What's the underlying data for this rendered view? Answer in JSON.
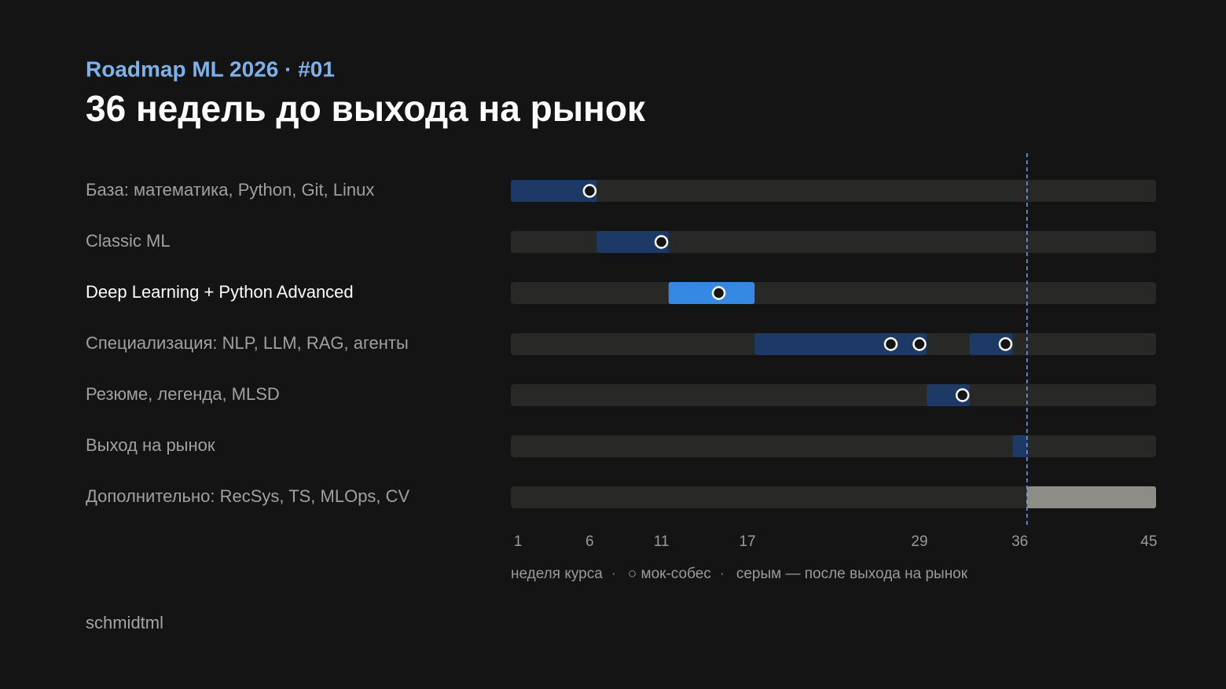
{
  "chart_data": {
    "type": "gantt",
    "subtitle": "Roadmap ML 2026 · #01",
    "title": "36 недель до выхода на рынок",
    "tasks": [
      {
        "name": "База: математика, Python, Git, Linux",
        "color": "#1d3a66",
        "segments": [
          {
            "start": 1,
            "end": 6
          }
        ],
        "mocks": [
          6
        ]
      },
      {
        "name": "Classic ML",
        "color": "#1d3a66",
        "segments": [
          {
            "start": 7,
            "end": 11
          }
        ],
        "mocks": [
          11
        ]
      },
      {
        "name": "Deep Learning + Python Advanced",
        "color": "#3589e3",
        "highlight": true,
        "segments": [
          {
            "start": 12,
            "end": 17
          }
        ],
        "mocks": [
          15
        ]
      },
      {
        "name": "Специализация: NLP, LLM, RAG, агенты",
        "color": "#1d3a66",
        "segments": [
          {
            "start": 18,
            "end": 29
          },
          {
            "start": 33,
            "end": 35
          }
        ],
        "mocks": [
          27,
          29,
          35
        ]
      },
      {
        "name": "Резюме, легенда, MLSD",
        "color": "#1d3a66",
        "segments": [
          {
            "start": 30,
            "end": 32
          }
        ],
        "mocks": [
          32
        ]
      },
      {
        "name": "Выход на рынок",
        "color": "#1d3a66",
        "segments": [
          {
            "start": 36,
            "end": 36
          }
        ],
        "mocks": []
      },
      {
        "name": "Дополнительно: RecSys, TS, MLOps, CV",
        "color": "#8d8c87",
        "segments": [
          {
            "start": 37,
            "end": 45
          }
        ],
        "mocks": []
      }
    ],
    "market_week": 36,
    "xlim": [
      0.5,
      45.5
    ],
    "xticks": [
      1,
      6,
      11,
      17,
      29,
      36,
      45
    ],
    "legend": [
      "неделя курса",
      "○ мок-собес",
      "серым — после выхода на рынок"
    ],
    "legend_separator": "·",
    "footer": "schmidtml"
  }
}
